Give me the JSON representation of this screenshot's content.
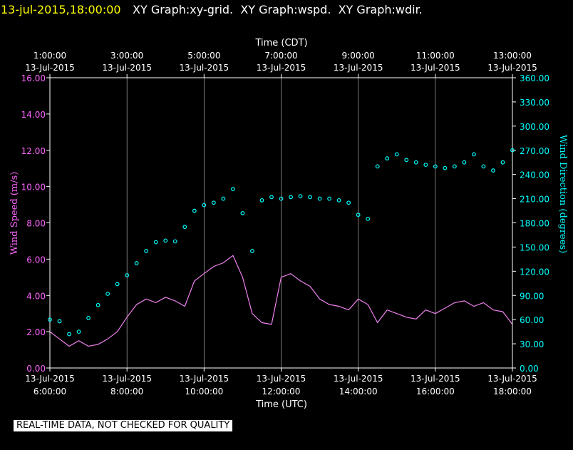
{
  "header": {
    "timestamp": "13-jul-2015,18:00:00",
    "graph_titles": "XY Graph:xy-grid.  XY Graph:wspd.  XY Graph:wdir."
  },
  "notice": "REAL-TIME DATA, NOT CHECKED FOR QUALITY",
  "colors": {
    "background": "#000000",
    "axis": "#ffffff",
    "timestamp": "#ffff00",
    "wind_speed": "#ee82ee",
    "wind_direction": "#00ffff",
    "left_axis_labels": "#ff66ff",
    "right_axis_labels": "#00ffff",
    "notice_bg": "#ffffff"
  },
  "chart_data": {
    "type": "line",
    "grid": true,
    "x_top_title": "Time (CDT)",
    "x_bottom_title": "Time (UTC)",
    "x_range_utc_hours": [
      6,
      18
    ],
    "x_top_ticks": [
      {
        "time": "1:00:00",
        "date": "13-Jul-2015",
        "utc_hour": 6
      },
      {
        "time": "3:00:00",
        "date": "13-Jul-2015",
        "utc_hour": 8
      },
      {
        "time": "5:00:00",
        "date": "13-Jul-2015",
        "utc_hour": 10
      },
      {
        "time": "7:00:00",
        "date": "13-Jul-2015",
        "utc_hour": 12
      },
      {
        "time": "9:00:00",
        "date": "13-Jul-2015",
        "utc_hour": 14
      },
      {
        "time": "11:00:00",
        "date": "13-Jul-2015",
        "utc_hour": 16
      },
      {
        "time": "13:00:00",
        "date": "13-Jul-2015",
        "utc_hour": 18
      }
    ],
    "x_bottom_ticks": [
      {
        "date": "13-Jul-2015",
        "time": "6:00:00",
        "utc_hour": 6
      },
      {
        "date": "13-Jul-2015",
        "time": "8:00:00",
        "utc_hour": 8
      },
      {
        "date": "13-Jul-2015",
        "time": "10:00:00",
        "utc_hour": 10
      },
      {
        "date": "13-Jul-2015",
        "time": "12:00:00",
        "utc_hour": 12
      },
      {
        "date": "13-Jul-2015",
        "time": "14:00:00",
        "utc_hour": 14
      },
      {
        "date": "13-Jul-2015",
        "time": "16:00:00",
        "utc_hour": 16
      },
      {
        "date": "13-Jul-2015",
        "time": "18:00:00",
        "utc_hour": 18
      }
    ],
    "y_left": {
      "label": "Wind Speed (m/s)",
      "range": [
        0,
        16
      ],
      "ticks": [
        "0.00",
        "2.00",
        "4.00",
        "6.00",
        "8.00",
        "10.00",
        "12.00",
        "14.00",
        "16.00"
      ]
    },
    "y_right": {
      "label": "Wind Direction (degrees)",
      "range": [
        0,
        360
      ],
      "ticks": [
        "0.00",
        "30.00",
        "60.00",
        "90.00",
        "120.00",
        "150.00",
        "180.00",
        "210.00",
        "240.00",
        "270.00",
        "300.00",
        "330.00",
        "360.00"
      ]
    },
    "series": [
      {
        "name": "wspd",
        "style": "line",
        "axis": "left",
        "x_utc_hours": [
          6.0,
          6.25,
          6.5,
          6.75,
          7.0,
          7.25,
          7.5,
          7.75,
          8.0,
          8.25,
          8.5,
          8.75,
          9.0,
          9.25,
          9.5,
          9.75,
          10.0,
          10.25,
          10.5,
          10.75,
          11.0,
          11.25,
          11.5,
          11.75,
          12.0,
          12.25,
          12.5,
          12.75,
          13.0,
          13.25,
          13.5,
          13.75,
          14.0,
          14.25,
          14.5,
          14.75,
          15.0,
          15.25,
          15.5,
          15.75,
          16.0,
          16.25,
          16.5,
          16.75,
          17.0,
          17.25,
          17.5,
          17.75,
          18.0
        ],
        "values": [
          2.0,
          1.6,
          1.2,
          1.5,
          1.2,
          1.3,
          1.6,
          2.0,
          2.8,
          3.5,
          3.8,
          3.6,
          3.9,
          3.7,
          3.4,
          4.8,
          5.2,
          5.6,
          5.8,
          6.2,
          5.0,
          3.0,
          2.5,
          2.4,
          5.0,
          5.2,
          4.8,
          4.5,
          3.8,
          3.5,
          3.4,
          3.2,
          3.8,
          3.5,
          2.5,
          3.2,
          3.0,
          2.8,
          2.7,
          3.2,
          3.0,
          3.3,
          3.6,
          3.7,
          3.4,
          3.6,
          3.2,
          3.1,
          2.4
        ]
      },
      {
        "name": "wdir",
        "style": "markers",
        "axis": "right",
        "x_utc_hours": [
          6.0,
          6.25,
          6.5,
          6.75,
          7.0,
          7.25,
          7.5,
          7.75,
          8.0,
          8.25,
          8.5,
          8.75,
          9.0,
          9.25,
          9.5,
          9.75,
          10.0,
          10.25,
          10.5,
          10.75,
          11.0,
          11.25,
          11.5,
          11.75,
          12.0,
          12.25,
          12.5,
          12.75,
          13.0,
          13.25,
          13.5,
          13.75,
          14.0,
          14.25,
          14.5,
          14.75,
          15.0,
          15.25,
          15.5,
          15.75,
          16.0,
          16.25,
          16.5,
          16.75,
          17.0,
          17.25,
          17.5,
          17.75,
          18.0
        ],
        "values": [
          60,
          58,
          42,
          45,
          62,
          78,
          92,
          104,
          115,
          130,
          145,
          156,
          158,
          157,
          175,
          195,
          202,
          205,
          210,
          222,
          192,
          145,
          208,
          212,
          210,
          212,
          213,
          212,
          210,
          210,
          208,
          205,
          190,
          185,
          250,
          260,
          265,
          258,
          255,
          252,
          250,
          248,
          250,
          255,
          265,
          250,
          245,
          255,
          270
        ]
      }
    ]
  }
}
